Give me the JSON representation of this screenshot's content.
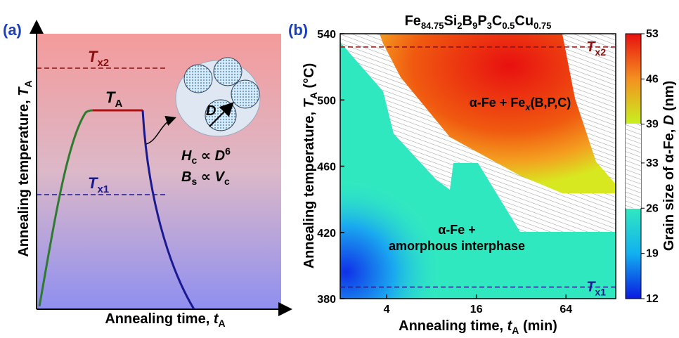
{
  "panel_a": {
    "panel_label": "(a)",
    "ylabel": [
      "Annealing temperature, ",
      "T",
      "A"
    ],
    "xlabel": [
      "Annealing time, ",
      "t",
      "A"
    ],
    "tx2": [
      "T",
      "x2"
    ],
    "tx1": [
      "T",
      "x1"
    ],
    "ta": [
      "T",
      "A"
    ],
    "d_label": "D",
    "hc": [
      "H",
      "c",
      " ∝ ",
      "D",
      "6"
    ],
    "bs": [
      "B",
      "s",
      " ∝ ",
      "V",
      "c"
    ]
  },
  "panel_b": {
    "panel_label": "(b)",
    "title": [
      "Fe",
      "84.75",
      "Si",
      "2",
      "B",
      "9",
      "P",
      "3",
      "C",
      "0.5",
      "Cu",
      "0.75"
    ],
    "ylabel": [
      "Annealing temperature, ",
      "T",
      "A",
      " (°C)"
    ],
    "xlabel": [
      "Annealing time, ",
      "t",
      "A",
      " (min)"
    ],
    "xlim": [
      1.95,
      138
    ],
    "xlog": true,
    "xticks": [
      4,
      16,
      64
    ],
    "ylim": [
      380,
      540
    ],
    "yticks": [
      380,
      420,
      460,
      500,
      540
    ],
    "tx2_value": 532,
    "tx1_value": 387,
    "tx2": [
      "T",
      "x2"
    ],
    "tx1": [
      "T",
      "x1"
    ],
    "region_upper": [
      "α-Fe + Fe",
      "x",
      "(B,P,C)"
    ],
    "region_lower": [
      "α-Fe +",
      "amorphous interphase"
    ],
    "colorbar_label": [
      "Grain size of α-Fe, ",
      "D",
      " (nm)"
    ],
    "colorbar_lim": [
      12,
      53
    ],
    "colorbar_ticks": [
      12,
      19,
      26,
      33,
      39,
      46,
      53
    ]
  }
}
